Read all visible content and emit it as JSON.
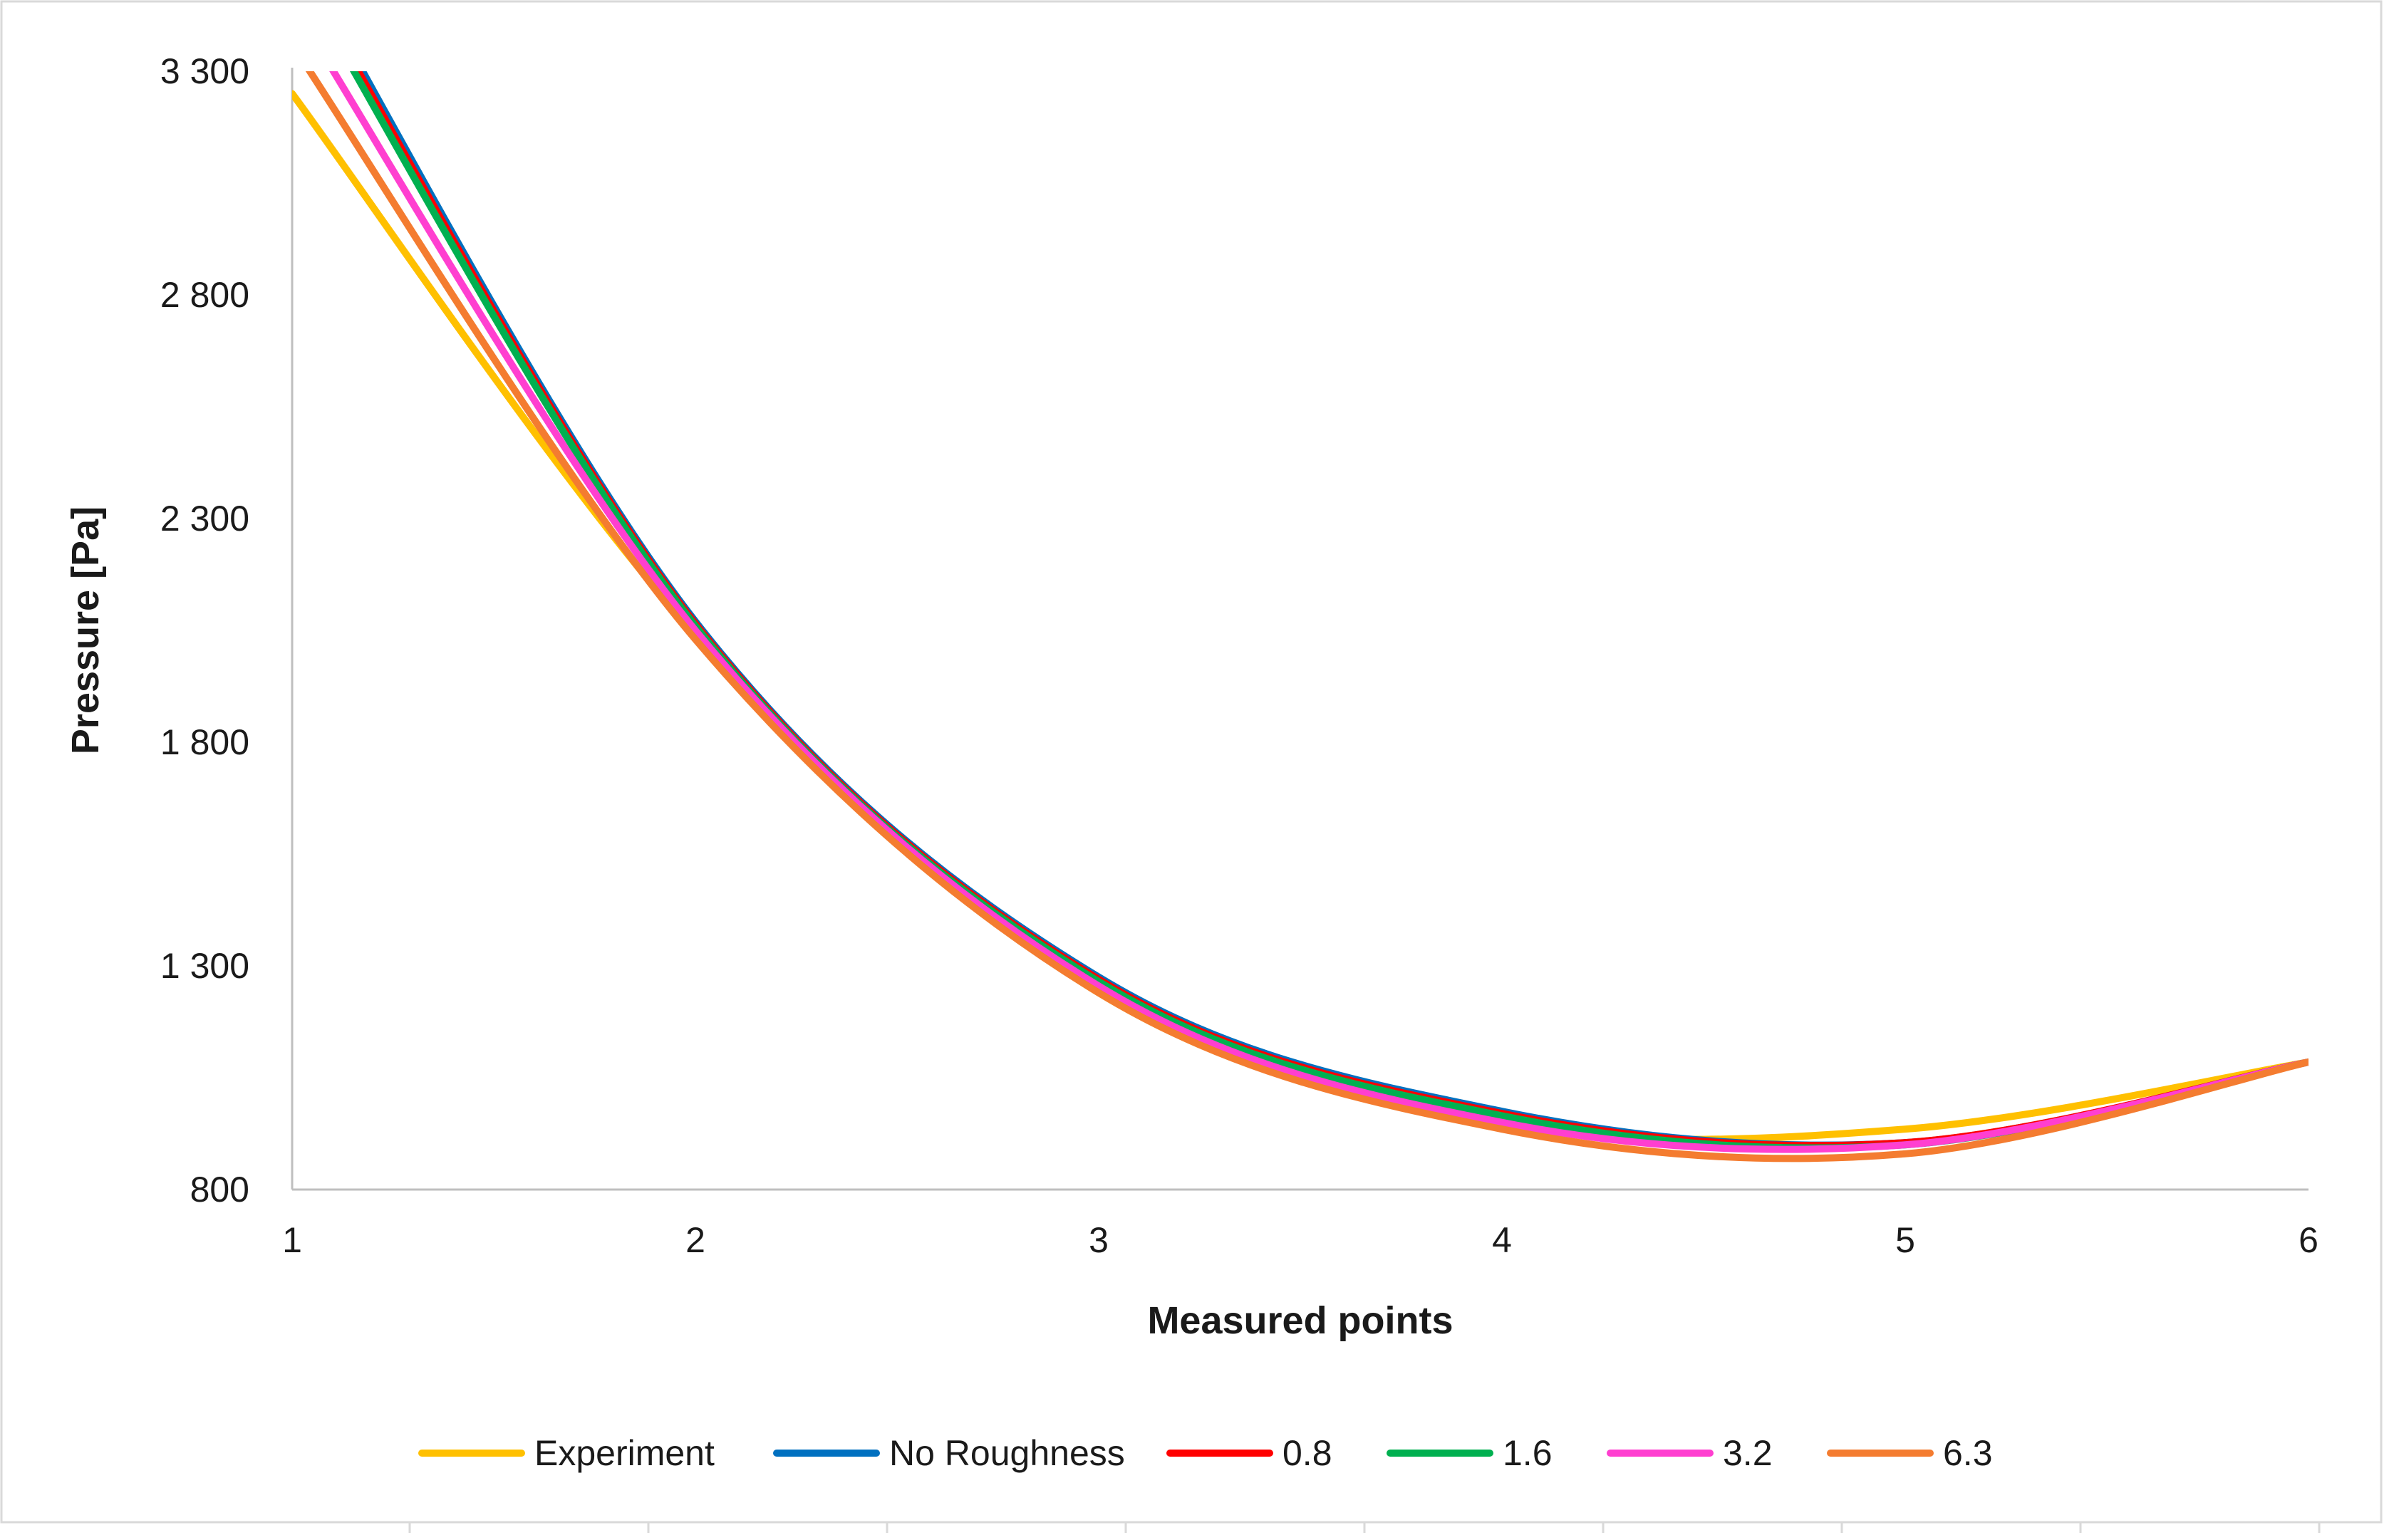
{
  "chart_data": {
    "type": "line",
    "title": "",
    "xlabel": "Measured points",
    "ylabel": "Pressure [Pa]",
    "x": [
      1,
      2,
      3,
      4,
      5,
      6
    ],
    "x_ticks": [
      "1",
      "2",
      "3",
      "4",
      "5",
      "6"
    ],
    "xlim": [
      1,
      6
    ],
    "ylim": [
      800,
      3300
    ],
    "y_ticks": [
      800,
      1300,
      1800,
      2300,
      2800,
      3300
    ],
    "y_tick_labels": [
      "800",
      "1 300",
      "1 800",
      "2 300",
      "2 800",
      "3 300"
    ],
    "grid": false,
    "smooth": true,
    "legend_position": "bottom",
    "series": [
      {
        "name": "Experiment",
        "color": "#FFC000",
        "values": [
          3250,
          2040,
          1240,
          945,
          935,
          1085
        ]
      },
      {
        "name": "No Roughness",
        "color": "#0070C0",
        "values": [
          3580,
          2070,
          1275,
          975,
          905,
          1085
        ]
      },
      {
        "name": "0.8",
        "color": "#FF0000",
        "values": [
          3560,
          2065,
          1270,
          970,
          905,
          1085
        ]
      },
      {
        "name": "1.6",
        "color": "#00B050",
        "values": [
          3540,
          2060,
          1265,
          965,
          900,
          1085
        ]
      },
      {
        "name": "3.2",
        "color": "#FF3FD0",
        "values": [
          3450,
          2050,
          1255,
          950,
          900,
          1085
        ]
      },
      {
        "name": "6.3",
        "color": "#F47C30",
        "values": [
          3360,
          2030,
          1240,
          935,
          880,
          1085
        ]
      }
    ]
  }
}
